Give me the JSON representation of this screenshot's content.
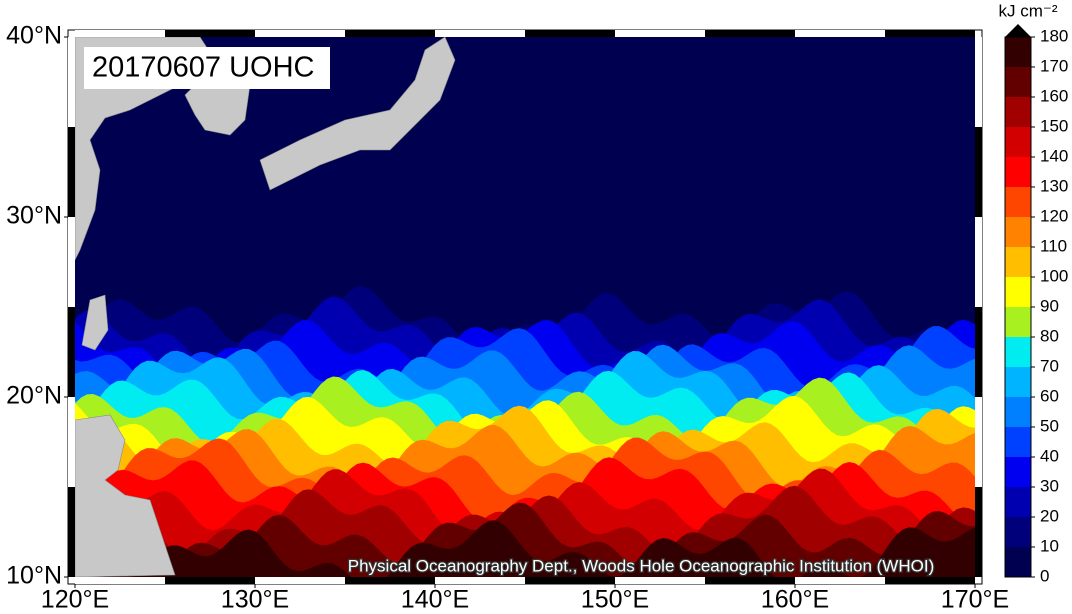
{
  "map": {
    "title": "20170607 UOHC",
    "lon_range": [
      120,
      170
    ],
    "lat_range": [
      10,
      40
    ],
    "lon_ticks": [
      {
        "value": 120,
        "label": "120°E"
      },
      {
        "value": 130,
        "label": "130°E"
      },
      {
        "value": 140,
        "label": "140°E"
      },
      {
        "value": 150,
        "label": "150°E"
      },
      {
        "value": 160,
        "label": "160°E"
      },
      {
        "value": 170,
        "label": "170°E"
      }
    ],
    "lat_ticks": [
      {
        "value": 10,
        "label": "10°N"
      },
      {
        "value": 20,
        "label": "20°N"
      },
      {
        "value": 30,
        "label": "30°N"
      },
      {
        "value": 40,
        "label": "40°N"
      }
    ],
    "colorbar": {
      "unit": "kJ cm⁻²",
      "ticks": [
        0,
        10,
        20,
        30,
        40,
        50,
        60,
        70,
        80,
        90,
        100,
        110,
        120,
        130,
        140,
        150,
        160,
        170,
        180
      ],
      "colors": [
        "#000050",
        "#00007a",
        "#0000b0",
        "#0000f0",
        "#0040ff",
        "#0080ff",
        "#00b4ff",
        "#00ecf0",
        "#a8f020",
        "#ffff00",
        "#ffbe00",
        "#ff8200",
        "#ff4600",
        "#ff0000",
        "#d20000",
        "#a00000",
        "#620000",
        "#320000"
      ],
      "extend_color": "#000000"
    },
    "credit": "Physical Oceanography Dept., Woods Hole Oceanographic Institution (WHOI)"
  }
}
